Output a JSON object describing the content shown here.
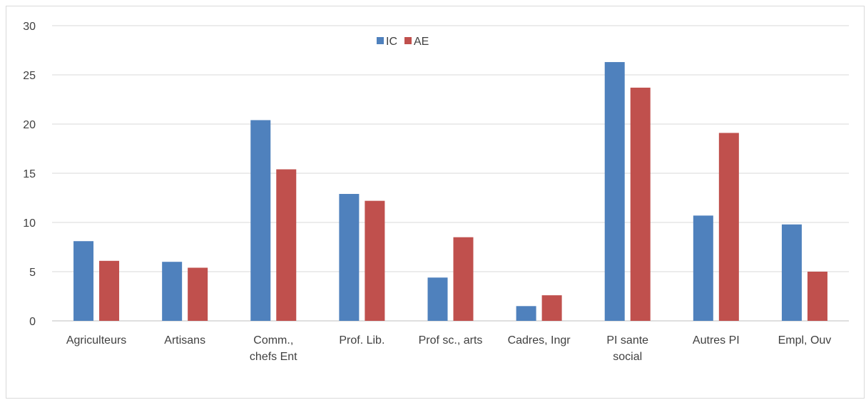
{
  "chart_data": {
    "type": "bar",
    "categories": [
      [
        "Agriculteurs"
      ],
      [
        "Artisans"
      ],
      [
        "Comm.,",
        "chefs Ent"
      ],
      [
        "Prof. Lib."
      ],
      [
        "Prof sc., arts"
      ],
      [
        "Cadres, Ingr"
      ],
      [
        "PI sante",
        "social"
      ],
      [
        "Autres PI"
      ],
      [
        "Empl, Ouv"
      ]
    ],
    "series": [
      {
        "name": "IC",
        "color": "#4f81bd",
        "values": [
          8.1,
          6.0,
          20.4,
          12.9,
          4.4,
          1.5,
          26.3,
          10.7,
          9.8
        ]
      },
      {
        "name": "AE",
        "color": "#c0504d",
        "values": [
          6.1,
          5.4,
          15.4,
          12.2,
          8.5,
          2.6,
          23.7,
          19.1,
          5.0
        ]
      }
    ],
    "ylim": [
      0,
      30
    ],
    "yticks": [
      0,
      5,
      10,
      15,
      20,
      25,
      30
    ],
    "grid": true,
    "legend": "top-center",
    "title": "",
    "xlabel": "",
    "ylabel": ""
  }
}
